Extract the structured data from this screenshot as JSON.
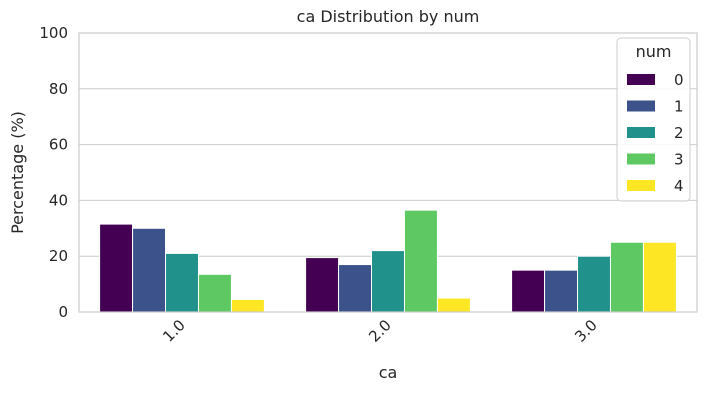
{
  "chart_data": {
    "type": "bar",
    "title": "ca Distribution by num",
    "xlabel": "ca",
    "ylabel": "Percentage (%)",
    "ylim": [
      0,
      100
    ],
    "yticks": [
      "0",
      "20",
      "40",
      "60",
      "80",
      "100"
    ],
    "categories": [
      "1.0",
      "2.0",
      "3.0"
    ],
    "legend_title": "num",
    "legend_position": "upper-right",
    "grid": true,
    "series": [
      {
        "name": "0",
        "color": "#440154",
        "values": [
          31.5,
          19.5,
          15.0
        ]
      },
      {
        "name": "1",
        "color": "#3b528b",
        "values": [
          30.0,
          17.0,
          15.0
        ]
      },
      {
        "name": "2",
        "color": "#21918c",
        "values": [
          21.0,
          22.0,
          20.0
        ]
      },
      {
        "name": "3",
        "color": "#5ec962",
        "values": [
          13.5,
          36.5,
          25.0
        ]
      },
      {
        "name": "4",
        "color": "#fde725",
        "values": [
          4.5,
          5.0,
          25.0
        ]
      }
    ]
  }
}
